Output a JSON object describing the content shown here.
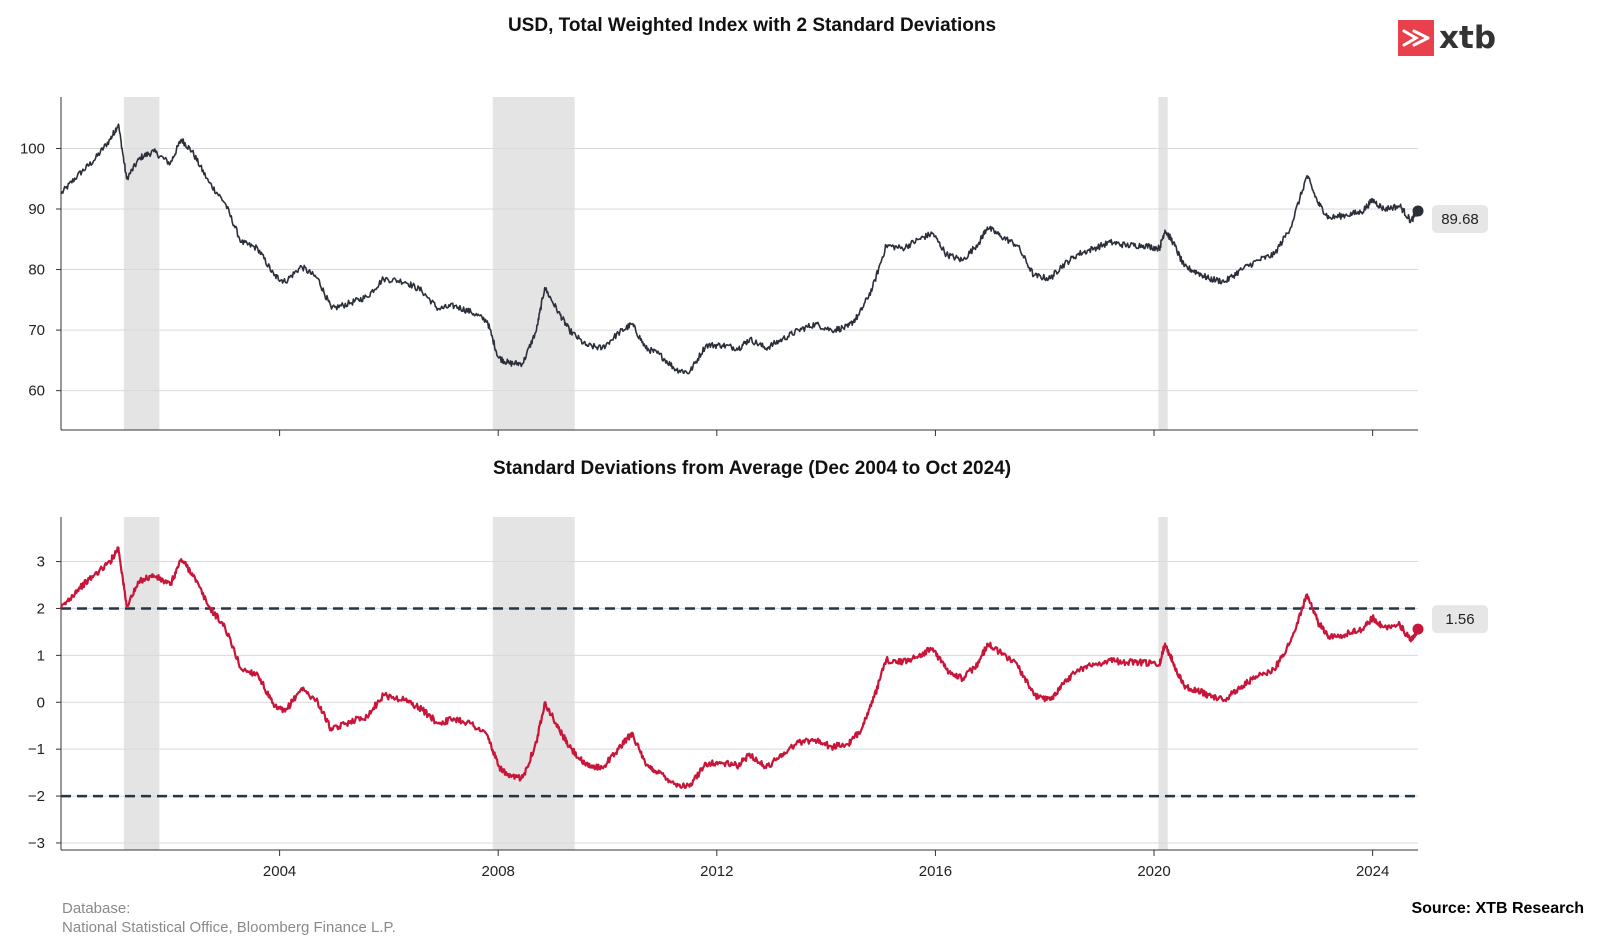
{
  "brand": {
    "logo_text": "xtb",
    "logo_color": "#e8404c"
  },
  "footer": {
    "database_label": "Database:",
    "database_sources": "National Statistical Office, Bloomberg Finance L.P.",
    "source": "Source: XTB Research"
  },
  "colors": {
    "index_line": "#2b2f3a",
    "sd_line": "#c8163a",
    "band_line": "#253347",
    "shade": "#e4e4e4",
    "grid": "#d9d9d9",
    "label_box": "#e6e6e6"
  },
  "chart_data": [
    {
      "type": "line",
      "title": "USD, Total Weighted Index with 2 Standard Deviations",
      "xlabel": "",
      "ylabel": "",
      "xlim": [
        2000.0,
        2024.83
      ],
      "ylim": [
        53.5,
        108.5
      ],
      "yticks": [
        60,
        70,
        80,
        90,
        100
      ],
      "xticks": [
        2004,
        2008,
        2012,
        2016,
        2020,
        2024
      ],
      "show_xtick_labels": false,
      "grid": true,
      "shaded_periods": [
        [
          2001.15,
          2001.8
        ],
        [
          2007.9,
          2009.4
        ],
        [
          2020.08,
          2020.25
        ]
      ],
      "last_value_label": "89.68",
      "series": [
        {
          "x": [
            2000.0,
            2000.3,
            2000.6,
            2000.9,
            2001.05,
            2001.2,
            2001.45,
            2001.7,
            2002.0,
            2002.2,
            2002.4,
            2002.7,
            2003.0,
            2003.3,
            2003.6,
            2003.9,
            2004.1,
            2004.4,
            2004.7,
            2004.95,
            2005.3,
            2005.6,
            2005.9,
            2006.3,
            2006.6,
            2006.9,
            2007.2,
            2007.5,
            2007.8,
            2008.0,
            2008.2,
            2008.45,
            2008.7,
            2008.85,
            2009.1,
            2009.3,
            2009.6,
            2009.9,
            2010.2,
            2010.45,
            2010.7,
            2010.95,
            2011.25,
            2011.5,
            2011.8,
            2012.1,
            2012.4,
            2012.6,
            2012.9,
            2013.2,
            2013.5,
            2013.8,
            2014.1,
            2014.4,
            2014.6,
            2014.85,
            2015.1,
            2015.4,
            2015.7,
            2015.95,
            2016.2,
            2016.5,
            2016.8,
            2016.95,
            2017.2,
            2017.5,
            2017.8,
            2018.1,
            2018.3,
            2018.6,
            2018.9,
            2019.2,
            2019.5,
            2019.8,
            2020.1,
            2020.2,
            2020.35,
            2020.55,
            2020.8,
            2021.0,
            2021.3,
            2021.6,
            2021.9,
            2022.2,
            2022.5,
            2022.8,
            2023.0,
            2023.2,
            2023.5,
            2023.8,
            2024.0,
            2024.2,
            2024.5,
            2024.7,
            2024.83
          ],
          "values": [
            92.5,
            95.5,
            98.0,
            101.5,
            104.0,
            95.0,
            98.5,
            99.5,
            97.5,
            101.5,
            99.5,
            94.5,
            91.0,
            84.5,
            83.5,
            79.0,
            78.0,
            80.5,
            78.5,
            73.5,
            74.5,
            75.5,
            78.5,
            78.0,
            76.5,
            73.5,
            74.0,
            73.0,
            71.5,
            65.5,
            64.5,
            64.5,
            70.0,
            77.0,
            73.0,
            70.0,
            67.5,
            67.0,
            69.5,
            71.0,
            67.0,
            66.0,
            63.5,
            63.0,
            67.5,
            67.5,
            67.0,
            68.5,
            67.0,
            68.5,
            70.0,
            71.0,
            70.0,
            70.5,
            72.5,
            77.0,
            84.0,
            83.5,
            85.0,
            86.0,
            82.5,
            81.5,
            84.5,
            87.0,
            85.5,
            84.0,
            79.0,
            78.5,
            80.5,
            82.5,
            83.5,
            84.5,
            84.0,
            84.0,
            83.5,
            86.5,
            84.5,
            80.5,
            79.5,
            78.5,
            78.0,
            80.0,
            81.5,
            82.5,
            87.0,
            95.5,
            91.0,
            88.5,
            89.0,
            89.5,
            91.5,
            90.0,
            90.5,
            88.0,
            89.68
          ]
        }
      ]
    },
    {
      "type": "line",
      "title": "Standard Deviations from Average (Dec 2004 to Oct 2024)",
      "xlabel": "",
      "ylabel": "",
      "xlim": [
        2000.0,
        2024.83
      ],
      "ylim": [
        -3.15,
        3.95
      ],
      "yticks": [
        -3,
        -2,
        -1,
        0,
        1,
        2,
        3
      ],
      "xticks": [
        2004,
        2008,
        2012,
        2016,
        2020,
        2024
      ],
      "grid": true,
      "shaded_periods": [
        [
          2001.15,
          2001.8
        ],
        [
          2007.9,
          2009.4
        ],
        [
          2020.08,
          2020.25
        ]
      ],
      "reference_lines": [
        2,
        -2
      ],
      "last_value_label": "1.56",
      "series": [
        {
          "x": [
            2000.0,
            2000.3,
            2000.6,
            2000.9,
            2001.05,
            2001.2,
            2001.45,
            2001.7,
            2002.0,
            2002.2,
            2002.4,
            2002.7,
            2003.0,
            2003.3,
            2003.6,
            2003.9,
            2004.1,
            2004.4,
            2004.7,
            2004.95,
            2005.3,
            2005.6,
            2005.9,
            2006.3,
            2006.6,
            2006.9,
            2007.2,
            2007.5,
            2007.8,
            2008.0,
            2008.2,
            2008.45,
            2008.7,
            2008.85,
            2009.1,
            2009.3,
            2009.6,
            2009.9,
            2010.2,
            2010.45,
            2010.7,
            2010.95,
            2011.25,
            2011.5,
            2011.8,
            2012.1,
            2012.4,
            2012.6,
            2012.9,
            2013.2,
            2013.5,
            2013.8,
            2014.1,
            2014.4,
            2014.6,
            2014.85,
            2015.1,
            2015.4,
            2015.7,
            2015.95,
            2016.2,
            2016.5,
            2016.8,
            2016.95,
            2017.2,
            2017.5,
            2017.8,
            2018.1,
            2018.3,
            2018.6,
            2018.9,
            2019.2,
            2019.5,
            2019.8,
            2020.1,
            2020.2,
            2020.35,
            2020.55,
            2020.8,
            2021.0,
            2021.3,
            2021.6,
            2021.9,
            2022.2,
            2022.5,
            2022.8,
            2023.0,
            2023.2,
            2023.5,
            2023.8,
            2024.0,
            2024.2,
            2024.5,
            2024.7,
            2024.83
          ],
          "values": [
            2.0,
            2.4,
            2.7,
            3.0,
            3.3,
            2.05,
            2.6,
            2.7,
            2.5,
            3.05,
            2.75,
            2.05,
            1.6,
            0.7,
            0.6,
            -0.1,
            -0.2,
            0.3,
            0.0,
            -0.6,
            -0.4,
            -0.3,
            0.15,
            0.05,
            -0.15,
            -0.45,
            -0.35,
            -0.45,
            -0.7,
            -1.35,
            -1.6,
            -1.6,
            -0.85,
            0.0,
            -0.55,
            -0.95,
            -1.35,
            -1.4,
            -1.0,
            -0.65,
            -1.35,
            -1.5,
            -1.75,
            -1.8,
            -1.3,
            -1.3,
            -1.35,
            -1.1,
            -1.4,
            -1.1,
            -0.85,
            -0.8,
            -0.95,
            -0.9,
            -0.65,
            0.0,
            0.9,
            0.85,
            1.0,
            1.15,
            0.7,
            0.5,
            0.85,
            1.25,
            1.05,
            0.8,
            0.15,
            0.05,
            0.35,
            0.7,
            0.8,
            0.9,
            0.85,
            0.85,
            0.8,
            1.25,
            0.85,
            0.35,
            0.25,
            0.15,
            0.05,
            0.35,
            0.55,
            0.7,
            1.3,
            2.3,
            1.7,
            1.4,
            1.45,
            1.55,
            1.8,
            1.6,
            1.65,
            1.3,
            1.56
          ]
        }
      ]
    }
  ]
}
